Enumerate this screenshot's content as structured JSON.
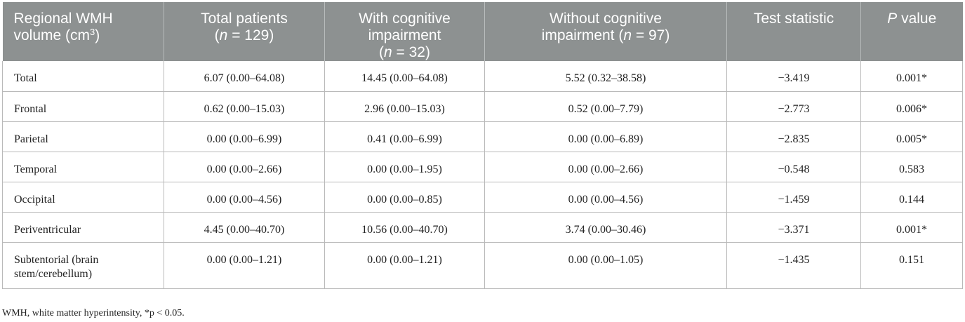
{
  "header": {
    "col0_line1": "Regional WMH",
    "col0_line2": "volume (cm",
    "col0_sup": "3",
    "col0_close": ")",
    "col1_line1": "Total patients",
    "col1_n": "n",
    "col1_eq": " = 129)",
    "col2_line1": "With cognitive",
    "col2_line2": "impairment",
    "col2_n": "n",
    "col2_eq": " = 32)",
    "col3_line1": "Without cognitive",
    "col3_line2": "impairment (",
    "col3_n": "n",
    "col3_eq": " = 97)",
    "col4": "Test statistic",
    "col5_p": "P",
    "col5_rest": " value"
  },
  "rows": [
    {
      "region": "Total",
      "total": "6.07 (0.00–64.08)",
      "with_ci": "14.45 (0.00–64.08)",
      "without_ci": "5.52 (0.32–38.58)",
      "stat": "−3.419",
      "p": "0.001*"
    },
    {
      "region": "Frontal",
      "total": "0.62 (0.00–15.03)",
      "with_ci": "2.96 (0.00–15.03)",
      "without_ci": "0.52 (0.00–7.79)",
      "stat": "−2.773",
      "p": "0.006*"
    },
    {
      "region": "Parietal",
      "total": "0.00 (0.00–6.99)",
      "with_ci": "0.41 (0.00–6.99)",
      "without_ci": "0.00 (0.00–6.89)",
      "stat": "−2.835",
      "p": "0.005*"
    },
    {
      "region": "Temporal",
      "total": "0.00 (0.00–2.66)",
      "with_ci": "0.00 (0.00–1.95)",
      "without_ci": "0.00 (0.00–2.66)",
      "stat": "−0.548",
      "p": "0.583"
    },
    {
      "region": "Occipital",
      "total": "0.00 (0.00–4.56)",
      "with_ci": "0.00 (0.00–0.85)",
      "without_ci": "0.00 (0.00–4.56)",
      "stat": "−1.459",
      "p": "0.144"
    },
    {
      "region": "Periventricular",
      "total": "4.45 (0.00–40.70)",
      "with_ci": "10.56 (0.00–40.70)",
      "without_ci": "3.74 (0.00–30.46)",
      "stat": "−3.371",
      "p": "0.001*"
    },
    {
      "region": "Subtentorial (brain stem/cerebellum)",
      "total": "0.00 (0.00–1.21)",
      "with_ci": "0.00 (0.00–1.21)",
      "without_ci": "0.00 (0.00–1.05)",
      "stat": "−1.435",
      "p": "0.151"
    }
  ],
  "footnote": "WMH, white matter hyperintensity, *p < 0.05."
}
